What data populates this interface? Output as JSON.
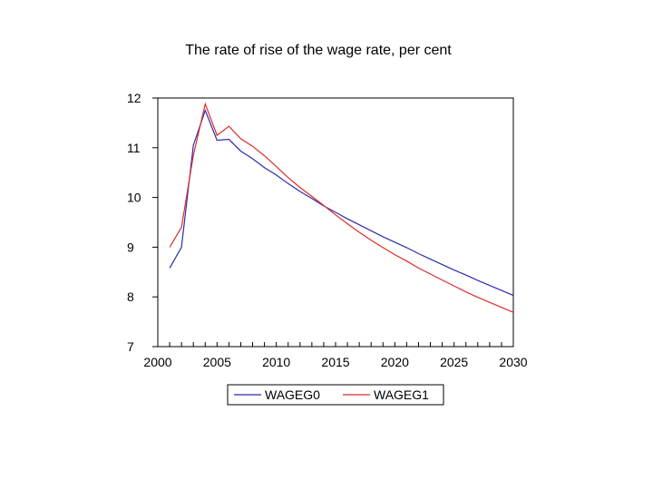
{
  "chart_data": {
    "type": "line",
    "title": "The rate of rise of the wage rate, per cent",
    "xlabel": "",
    "ylabel": "",
    "xlim": [
      2000,
      2030
    ],
    "ylim": [
      7,
      12
    ],
    "x_ticks": [
      2000,
      2005,
      2010,
      2015,
      2020,
      2025,
      2030
    ],
    "y_ticks": [
      7,
      8,
      9,
      10,
      11,
      12
    ],
    "legend_position": "bottom-center",
    "grid": false,
    "x": [
      2001,
      2002,
      2003,
      2004,
      2005,
      2006,
      2007,
      2008,
      2009,
      2010,
      2011,
      2012,
      2013,
      2014,
      2015,
      2016,
      2017,
      2018,
      2019,
      2020,
      2021,
      2022,
      2023,
      2024,
      2025,
      2026,
      2027,
      2028,
      2029,
      2030
    ],
    "series": [
      {
        "name": "WAGEG0",
        "color": "#2b2bb0",
        "values": [
          8.58,
          9.0,
          11.05,
          11.75,
          11.15,
          11.17,
          10.93,
          10.78,
          10.6,
          10.45,
          10.28,
          10.12,
          9.98,
          9.83,
          9.7,
          9.57,
          9.45,
          9.33,
          9.21,
          9.1,
          8.99,
          8.87,
          8.76,
          8.65,
          8.54,
          8.44,
          8.33,
          8.23,
          8.13,
          8.03
        ]
      },
      {
        "name": "WAGEG1",
        "color": "#dd2b2b",
        "values": [
          9.0,
          9.4,
          10.85,
          11.88,
          11.25,
          11.43,
          11.18,
          11.03,
          10.84,
          10.62,
          10.4,
          10.2,
          10.02,
          9.84,
          9.65,
          9.47,
          9.3,
          9.14,
          8.99,
          8.85,
          8.72,
          8.58,
          8.46,
          8.34,
          8.22,
          8.1,
          7.99,
          7.89,
          7.79,
          7.69
        ]
      }
    ]
  }
}
